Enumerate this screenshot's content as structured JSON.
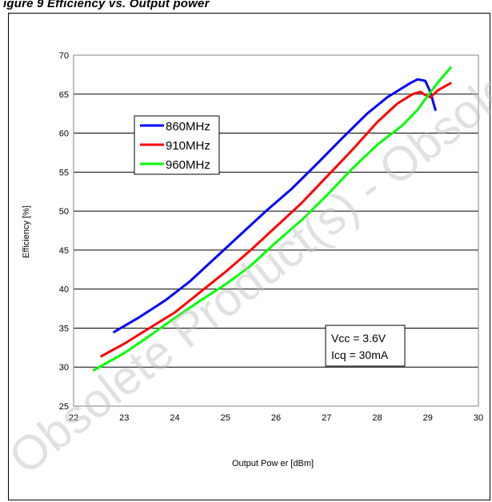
{
  "header": {
    "text": "igure 9 Efficiency vs. Output power"
  },
  "watermark": {
    "text": "Obsolete Product(s) - Obsolete Product(s)"
  },
  "chart_data": {
    "type": "line",
    "xlabel": "Output Pow er [dBm]",
    "ylabel": "Efficiency [%]",
    "xlim": [
      22,
      30
    ],
    "ylim": [
      25,
      70
    ],
    "xticks": [
      "22",
      "23",
      "24",
      "25",
      "26",
      "27",
      "28",
      "29",
      "30"
    ],
    "yticks": [
      "70",
      "65",
      "60",
      "55",
      "50",
      "45",
      "40",
      "35",
      "30",
      "25"
    ],
    "grid": "horizontal",
    "legend_position": "upper-left",
    "series": [
      {
        "name": "860MHz",
        "color": "#0000ff",
        "x": [
          22.8,
          23.3,
          23.8,
          24.3,
          24.8,
          25.3,
          25.8,
          26.3,
          26.8,
          27.3,
          27.8,
          28.2,
          28.45,
          28.65,
          28.8,
          28.95,
          29.05,
          29.15
        ],
        "y": [
          34.5,
          36.4,
          38.5,
          41.0,
          44.0,
          47.0,
          50.0,
          52.8,
          56.0,
          59.3,
          62.5,
          64.6,
          65.6,
          66.4,
          66.9,
          66.7,
          65.3,
          63.0
        ]
      },
      {
        "name": "910MHz",
        "color": "#ff0000",
        "x": [
          22.55,
          23.0,
          23.5,
          24.0,
          24.5,
          25.0,
          25.5,
          26.0,
          26.5,
          27.0,
          27.5,
          28.0,
          28.4,
          28.7,
          28.85,
          28.95,
          29.05,
          29.2,
          29.45
        ],
        "y": [
          31.4,
          33.0,
          35.0,
          37.0,
          39.6,
          42.2,
          45.0,
          48.0,
          51.0,
          54.4,
          57.8,
          61.4,
          63.8,
          65.0,
          65.3,
          64.9,
          64.6,
          65.5,
          66.4
        ]
      },
      {
        "name": "960MHz",
        "color": "#00ff00",
        "x": [
          22.4,
          23.0,
          23.5,
          24.0,
          24.5,
          25.0,
          25.5,
          26.0,
          26.5,
          27.0,
          27.5,
          28.0,
          28.5,
          28.8,
          29.0,
          29.2,
          29.45
        ],
        "y": [
          29.6,
          31.8,
          34.0,
          36.3,
          38.5,
          40.6,
          43.0,
          46.0,
          48.8,
          52.0,
          55.4,
          58.5,
          61.0,
          63.0,
          64.8,
          66.5,
          68.4
        ]
      }
    ],
    "annotation": {
      "lines": [
        "Vcc = 3.6V",
        "Icq = 30mA"
      ]
    }
  }
}
